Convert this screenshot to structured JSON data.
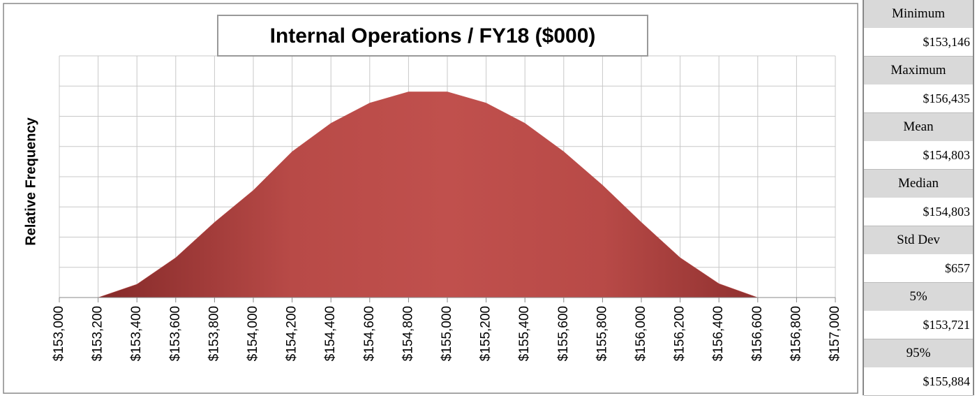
{
  "chart_data": {
    "type": "area",
    "title": "Internal Operations / FY18 ($000)",
    "y_label": "Relative Frequency",
    "x": [
      153000,
      153200,
      153400,
      153600,
      153800,
      154000,
      154200,
      154400,
      154600,
      154800,
      155000,
      155200,
      155400,
      155600,
      155800,
      156000,
      156200,
      156400,
      156600,
      156800,
      157000
    ],
    "values": [
      0,
      0,
      0.44,
      1.32,
      2.49,
      3.55,
      4.83,
      5.77,
      6.44,
      6.81,
      6.81,
      6.44,
      5.77,
      4.83,
      3.72,
      2.49,
      1.32,
      0.46,
      0,
      0,
      0
    ],
    "color": "#c0504d",
    "grid": true,
    "xlim": [
      153000,
      157000
    ],
    "xticks": [
      {
        "value": 153000,
        "label": "$153,000"
      },
      {
        "value": 153200,
        "label": "$153,200"
      },
      {
        "value": 153400,
        "label": "$153,400"
      },
      {
        "value": 153600,
        "label": "$153,600"
      },
      {
        "value": 153800,
        "label": "$153,800"
      },
      {
        "value": 154000,
        "label": "$154,000"
      },
      {
        "value": 154200,
        "label": "$154,200"
      },
      {
        "value": 154400,
        "label": "$154,400"
      },
      {
        "value": 154600,
        "label": "$154,600"
      },
      {
        "value": 154800,
        "label": "$154,800"
      },
      {
        "value": 155000,
        "label": "$155,000"
      },
      {
        "value": 155200,
        "label": "$155,200"
      },
      {
        "value": 155400,
        "label": "$155,400"
      },
      {
        "value": 155600,
        "label": "$155,600"
      },
      {
        "value": 155800,
        "label": "$155,800"
      },
      {
        "value": 156000,
        "label": "$156,000"
      },
      {
        "value": 156200,
        "label": "$156,200"
      },
      {
        "value": 156400,
        "label": "$156,400"
      },
      {
        "value": 156600,
        "label": "$156,600"
      },
      {
        "value": 156800,
        "label": "$156,800"
      },
      {
        "value": 157000,
        "label": "$157,000"
      }
    ],
    "ylim": [
      0,
      8
    ],
    "yticks": [
      0,
      1,
      2,
      3,
      4,
      5,
      6,
      7,
      8
    ]
  },
  "stats": [
    {
      "label": "Minimum",
      "value": "$153,146"
    },
    {
      "label": "Maximum",
      "value": "$156,435"
    },
    {
      "label": "Mean",
      "value": "$154,803"
    },
    {
      "label": "Median",
      "value": "$154,803"
    },
    {
      "label": "Std Dev",
      "value": "$657"
    },
    {
      "label": "5%",
      "value": "$153,721"
    },
    {
      "label": "95%",
      "value": "$155,884"
    }
  ]
}
